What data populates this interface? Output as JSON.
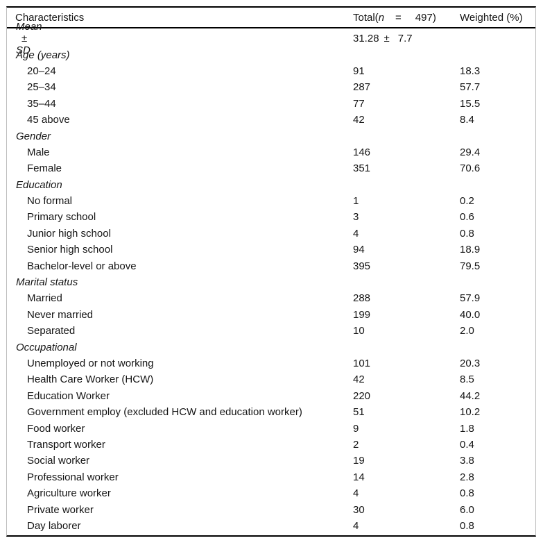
{
  "table": {
    "header": {
      "characteristics": "Characteristics",
      "total_prefix": "Total(",
      "total_n": "n",
      "total_eq": "=",
      "total_value": "497)",
      "weighted": "Weighted (%)"
    },
    "rows": [
      {
        "type": "mean",
        "label_parts": [
          "Mean",
          "±",
          "SD"
        ],
        "total_parts": [
          "31.28",
          "±",
          "7.7"
        ],
        "weighted": ""
      },
      {
        "type": "section",
        "label": "Age (years)",
        "total": "",
        "weighted": ""
      },
      {
        "type": "item",
        "label": "20–24",
        "total": "91",
        "weighted": "18.3"
      },
      {
        "type": "item",
        "label": "25–34",
        "total": "287",
        "weighted": "57.7"
      },
      {
        "type": "item",
        "label": "35–44",
        "total": "77",
        "weighted": "15.5"
      },
      {
        "type": "item",
        "label": "45 above",
        "total": "42",
        "weighted": "8.4"
      },
      {
        "type": "section",
        "label": "Gender",
        "total": "",
        "weighted": ""
      },
      {
        "type": "item",
        "label": "Male",
        "total": "146",
        "weighted": "29.4"
      },
      {
        "type": "item",
        "label": "Female",
        "total": "351",
        "weighted": "70.6"
      },
      {
        "type": "section",
        "label": "Education",
        "total": "",
        "weighted": ""
      },
      {
        "type": "item",
        "label": "No formal",
        "total": "1",
        "weighted": "0.2"
      },
      {
        "type": "item",
        "label": "Primary school",
        "total": "3",
        "weighted": "0.6"
      },
      {
        "type": "item",
        "label": "Junior high school",
        "total": "4",
        "weighted": "0.8"
      },
      {
        "type": "item",
        "label": "Senior high school",
        "total": "94",
        "weighted": "18.9"
      },
      {
        "type": "item",
        "label": "Bachelor-level or above",
        "total": "395",
        "weighted": "79.5"
      },
      {
        "type": "section",
        "label": "Marital status",
        "total": "",
        "weighted": ""
      },
      {
        "type": "item",
        "label": "Married",
        "total": "288",
        "weighted": "57.9"
      },
      {
        "type": "item",
        "label": "Never married",
        "total": "199",
        "weighted": "40.0"
      },
      {
        "type": "item",
        "label": "Separated",
        "total": "10",
        "weighted": "2.0"
      },
      {
        "type": "section",
        "label": "Occupational",
        "total": "",
        "weighted": ""
      },
      {
        "type": "item",
        "label": "Unemployed or not working",
        "total": "101",
        "weighted": "20.3"
      },
      {
        "type": "item",
        "label": "Health Care Worker (HCW)",
        "total": "42",
        "weighted": "8.5"
      },
      {
        "type": "item",
        "label": "Education Worker",
        "total": "220",
        "weighted": "44.2"
      },
      {
        "type": "item",
        "label": "Government employ (excluded HCW and education worker)",
        "total": "51",
        "weighted": "10.2"
      },
      {
        "type": "item",
        "label": "Food worker",
        "total": "9",
        "weighted": "1.8"
      },
      {
        "type": "item",
        "label": "Transport worker",
        "total": "2",
        "weighted": "0.4"
      },
      {
        "type": "item",
        "label": "Social worker",
        "total": "19",
        "weighted": "3.8"
      },
      {
        "type": "item",
        "label": "Professional worker",
        "total": "14",
        "weighted": "2.8"
      },
      {
        "type": "item",
        "label": "Agriculture worker",
        "total": "4",
        "weighted": "0.8"
      },
      {
        "type": "item",
        "label": "Private worker",
        "total": "30",
        "weighted": "6.0"
      },
      {
        "type": "item",
        "label": "Day laborer",
        "total": "4",
        "weighted": "0.8"
      }
    ]
  }
}
